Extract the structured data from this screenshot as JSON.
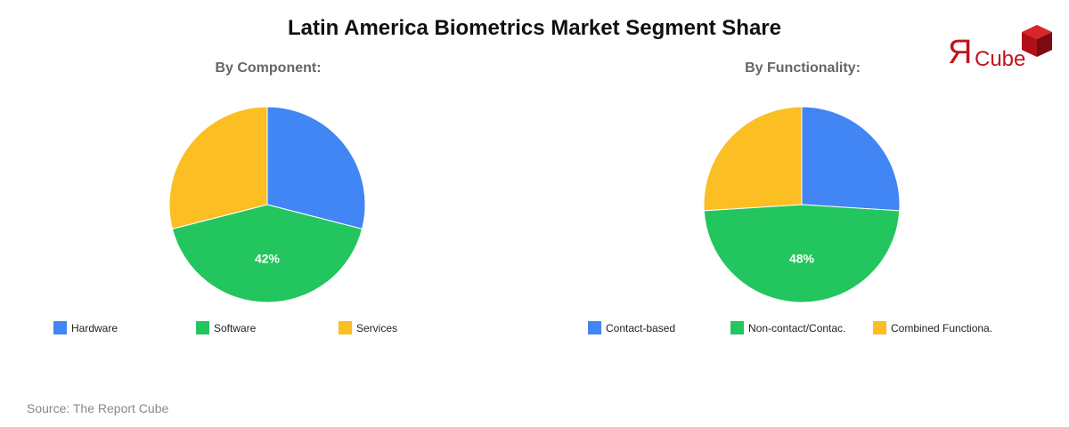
{
  "title": "Latin America Biometrics Market Segment Share",
  "logo": {
    "r_glyph": "Я",
    "text": "Cube",
    "color": "#c0141b"
  },
  "source": "Source: The Report Cube",
  "colors": {
    "blue": "#4285f4",
    "green": "#22c55e",
    "yellow": "#fbbf24"
  },
  "charts": [
    {
      "subtitle": "By Component:",
      "legend": [
        {
          "label": "Hardware",
          "color": "#4285f4"
        },
        {
          "label": "Software",
          "color": "#22c55e"
        },
        {
          "label": "Services",
          "color": "#fbbf24"
        }
      ],
      "center_label": "42%"
    },
    {
      "subtitle": "By Functionality:",
      "legend": [
        {
          "label": "Contact-based",
          "color": "#4285f4"
        },
        {
          "label": "Non-contact/Contac.",
          "color": "#22c55e"
        },
        {
          "label": "Combined Functiona.",
          "color": "#fbbf24"
        }
      ],
      "center_label": "48%"
    }
  ],
  "chart_data": [
    {
      "type": "pie",
      "title": "By Component:",
      "categories": [
        "Hardware",
        "Software",
        "Services"
      ],
      "values": [
        29,
        42,
        29
      ],
      "colors": [
        "#4285f4",
        "#22c55e",
        "#fbbf24"
      ],
      "data_labels": {
        "Software": "42%"
      },
      "start_angle": "12 o'clock, clockwise",
      "legend_position": "bottom"
    },
    {
      "type": "pie",
      "title": "By Functionality:",
      "categories": [
        "Contact-based",
        "Non-contact/Contac.",
        "Combined Functiona."
      ],
      "values": [
        26,
        48,
        26
      ],
      "colors": [
        "#4285f4",
        "#22c55e",
        "#fbbf24"
      ],
      "data_labels": {
        "Non-contact/Contac.": "48%"
      },
      "start_angle": "12 o'clock, clockwise",
      "legend_position": "bottom"
    }
  ]
}
